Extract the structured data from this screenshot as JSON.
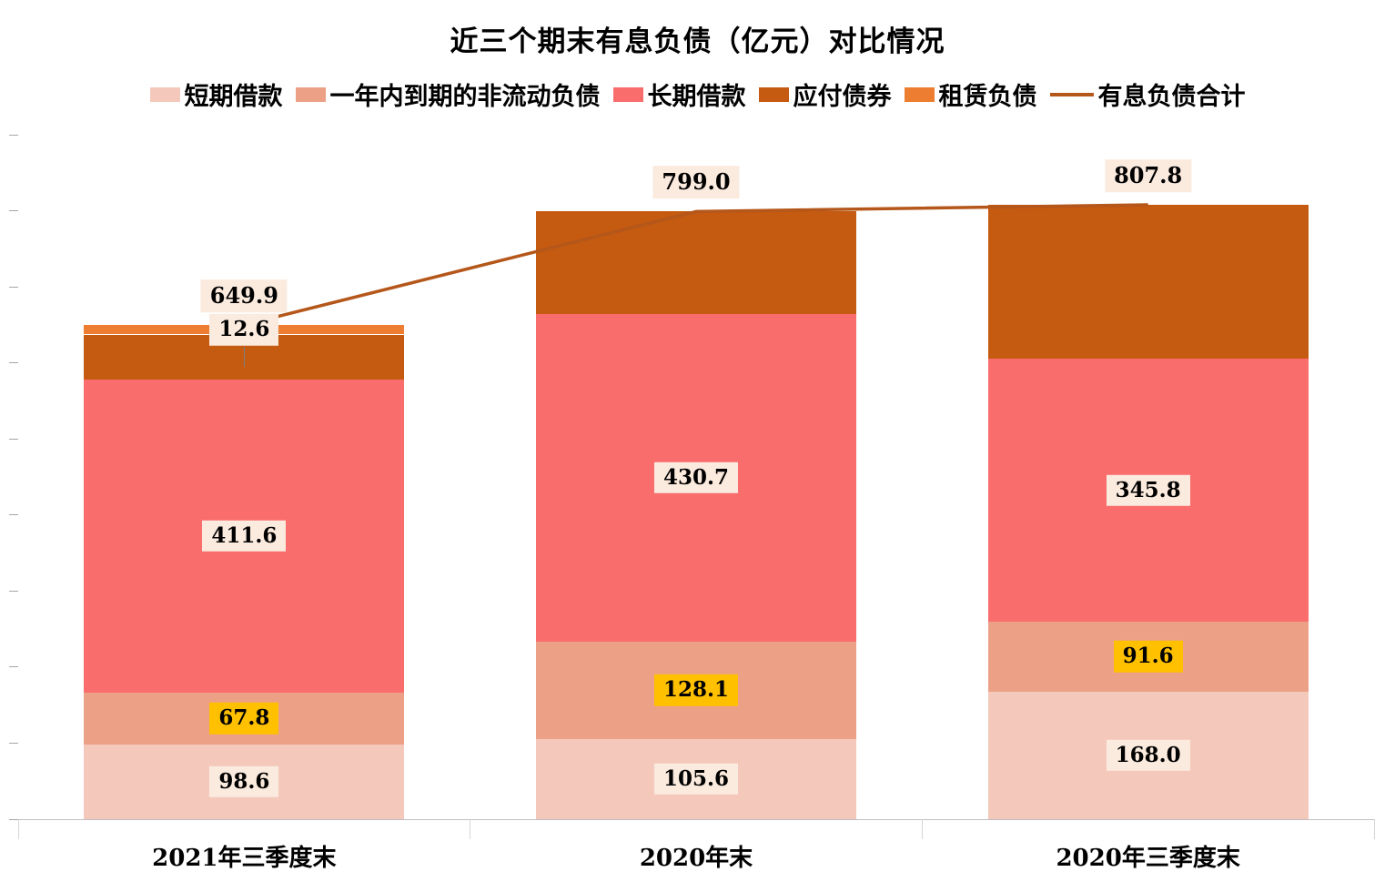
{
  "chart_data": {
    "type": "bar",
    "stacked": true,
    "title": "近三个期末有息负债（亿元）对比情况",
    "categories": [
      "2021年三季度末",
      "2020年末",
      "2020年三季度末"
    ],
    "series": [
      {
        "name": "短期借款",
        "color": "#F4C9BC",
        "values": [
          98.6,
          105.6,
          168.0
        ],
        "labels": [
          "98.6",
          "105.6",
          "168.0"
        ],
        "label_bg": "#FBEADE"
      },
      {
        "name": "一年内到期的非流动负债",
        "color": "#ECA187",
        "values": [
          67.8,
          128.1,
          91.6
        ],
        "labels": [
          "67.8",
          "128.1",
          "91.6"
        ],
        "label_bg": "#FFC000"
      },
      {
        "name": "长期借款",
        "color": "#F96D6D",
        "values": [
          411.6,
          430.7,
          345.8
        ],
        "labels": [
          "411.6",
          "430.7",
          "345.8"
        ],
        "label_bg": "#FBEADE"
      },
      {
        "name": "应付债券",
        "color": "#C55A11",
        "values": [
          59.3,
          134.6,
          202.4
        ],
        "labels": [
          "",
          "",
          ""
        ],
        "label_bg": "#FBEADE"
      },
      {
        "name": "租赁负债",
        "color": "#ED7D31",
        "values": [
          12.6,
          0,
          0
        ],
        "labels": [
          "12.6",
          "",
          ""
        ],
        "label_bg": "#FBEADE"
      }
    ],
    "line_series": {
      "name": "有息负债合计",
      "color": "#B5571A",
      "values": [
        649.9,
        799.0,
        807.8
      ],
      "labels": [
        "649.9",
        "799.0",
        "807.8"
      ],
      "label_bg": "#FBEADE"
    },
    "xlabel": "",
    "ylabel": "",
    "ylim": [
      0,
      900
    ],
    "y_tick_step": 100,
    "y_tick_labels_visible": false,
    "grid": false,
    "legend_position": "top"
  }
}
